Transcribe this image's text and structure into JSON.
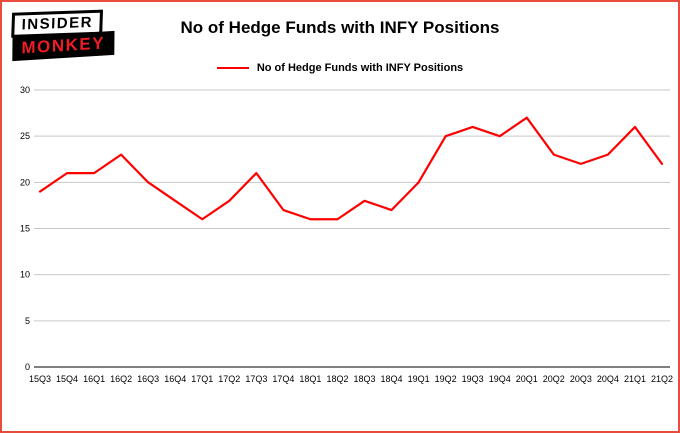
{
  "logo": {
    "line1": "INSIDER",
    "line2": "MONKEY"
  },
  "chart_data": {
    "type": "line",
    "title": "No of Hedge Funds with INFY Positions",
    "legend_label": "No of Hedge Funds with INFY Positions",
    "legend_position": "top",
    "categories": [
      "15Q3",
      "15Q4",
      "16Q1",
      "16Q2",
      "16Q3",
      "16Q4",
      "17Q1",
      "17Q2",
      "17Q3",
      "17Q4",
      "18Q1",
      "18Q2",
      "18Q3",
      "18Q4",
      "19Q1",
      "19Q2",
      "19Q3",
      "19Q4",
      "20Q1",
      "20Q2",
      "20Q3",
      "20Q4",
      "21Q1",
      "21Q2"
    ],
    "values": [
      19,
      21,
      21,
      23,
      20,
      18,
      16,
      18,
      21,
      17,
      16,
      16,
      18,
      17,
      20,
      25,
      26,
      25,
      27,
      23,
      22,
      23,
      26,
      22
    ],
    "xlabel": "",
    "ylabel": "",
    "ylim": [
      0,
      30
    ],
    "yticks": [
      0,
      5,
      10,
      15,
      20,
      25,
      30
    ],
    "grid": true,
    "line_color": "#ff0000",
    "grid_color": "#c9c9c9",
    "axis_color": "#000000",
    "frame_border_color": "#e74c3c"
  }
}
